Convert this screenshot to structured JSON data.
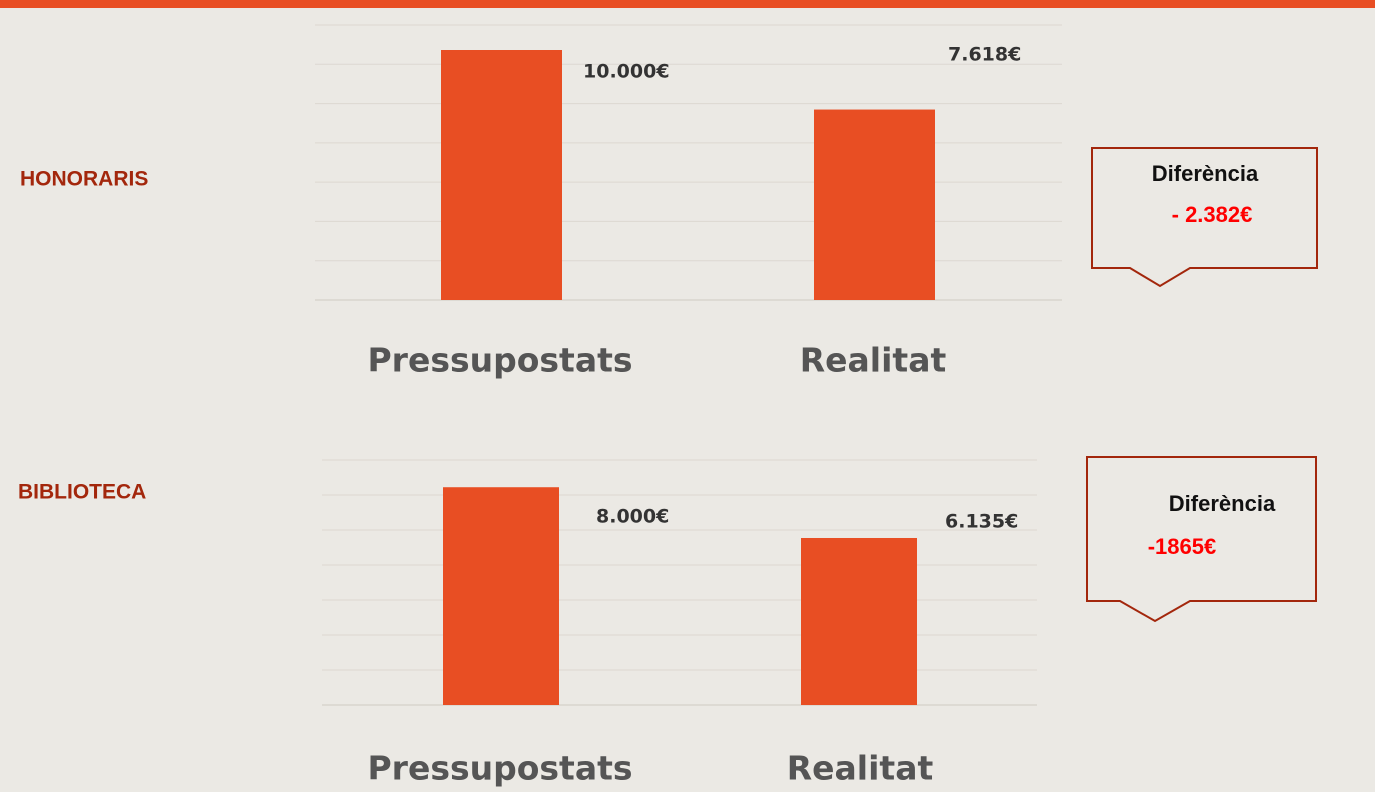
{
  "chart_data": [
    {
      "type": "bar",
      "title": "HONORARIS",
      "categories": [
        "Pressupostats",
        "Realitat"
      ],
      "values": [
        10000,
        7618
      ],
      "value_labels": [
        "10.000€",
        "7.618€"
      ],
      "color": "#e84e23",
      "ylim": [
        0,
        11000
      ],
      "grid": true,
      "annotation": {
        "label": "Diferència",
        "value": "- 2.382€"
      }
    },
    {
      "type": "bar",
      "title": "BIBLIOTECA",
      "categories": [
        "Pressupostats",
        "Realitat"
      ],
      "values": [
        8000,
        6135
      ],
      "value_labels": [
        "8.000€",
        "6.135€"
      ],
      "color": "#e84e23",
      "ylim": [
        0,
        9000
      ],
      "grid": true,
      "annotation": {
        "label": "Diferència",
        "value": "-1865€"
      }
    }
  ]
}
